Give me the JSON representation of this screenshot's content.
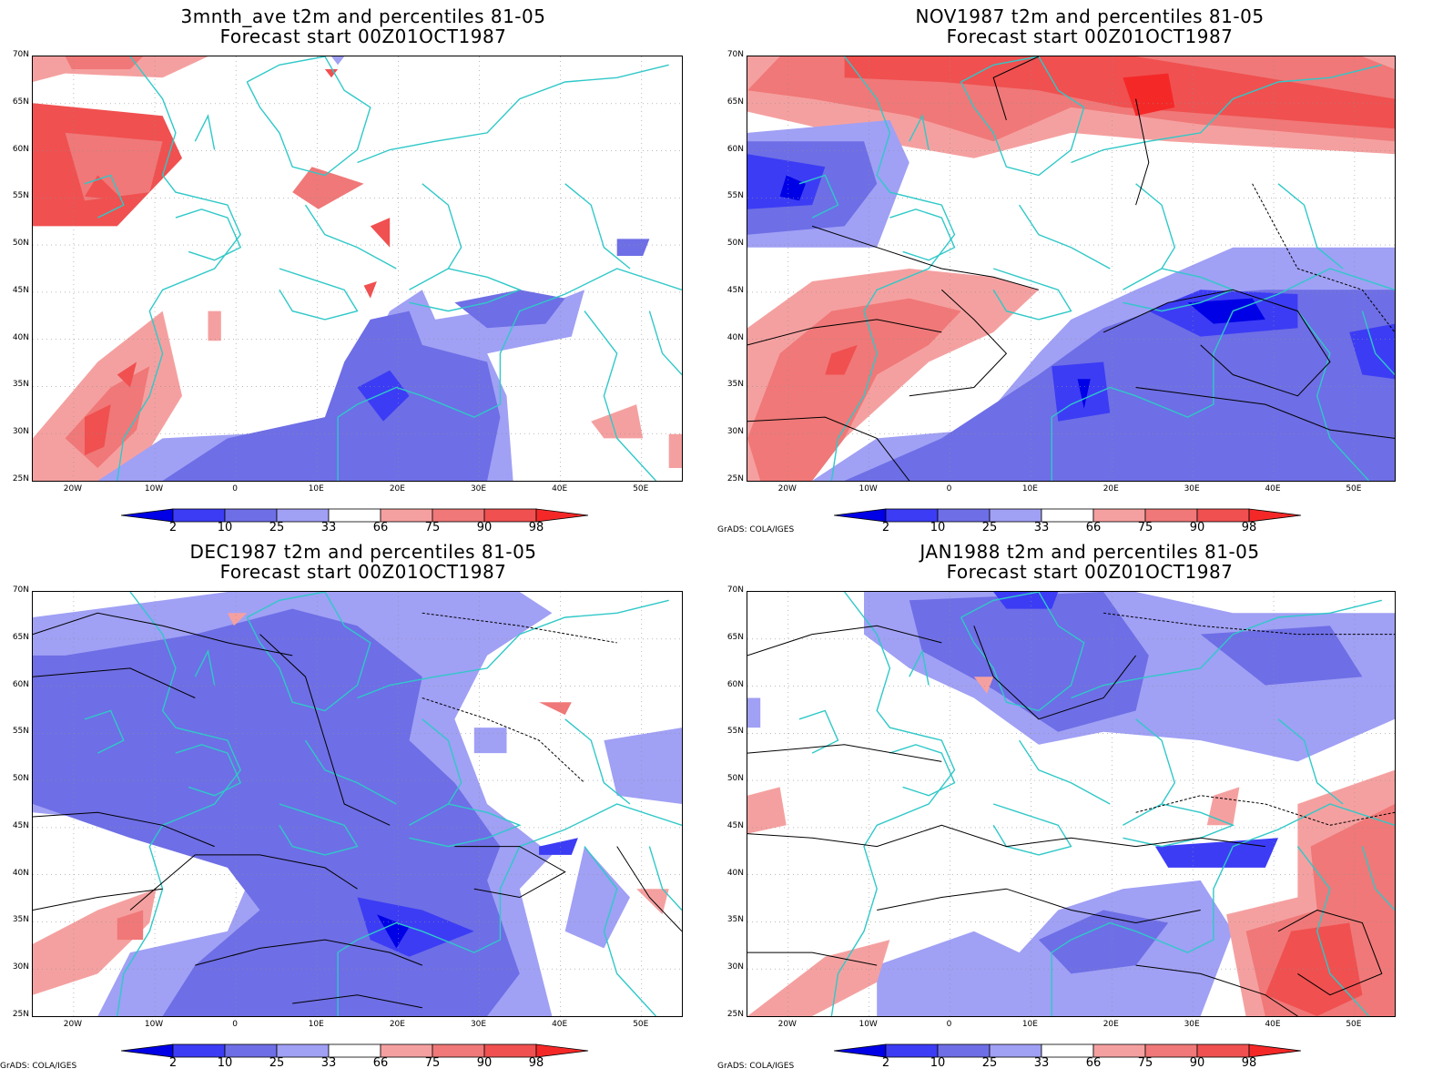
{
  "panels": [
    {
      "title_line1": "3mnth_ave t2m and percentiles 81-05",
      "title_line2": "Forecast start 00Z01OCT1987"
    },
    {
      "title_line1": "NOV1987 t2m and percentiles 81-05",
      "title_line2": "Forecast start 00Z01OCT1987"
    },
    {
      "title_line1": "DEC1987 t2m and percentiles 81-05",
      "title_line2": "Forecast start 00Z01OCT1987"
    },
    {
      "title_line1": "JAN1988 t2m and percentiles 81-05",
      "title_line2": "Forecast start 00Z01OCT1987"
    }
  ],
  "lat_labels": [
    "70N",
    "65N",
    "60N",
    "55N",
    "50N",
    "45N",
    "40N",
    "35N",
    "30N",
    "25N"
  ],
  "lon_labels": [
    "20W",
    "10W",
    "0",
    "10E",
    "20E",
    "30E",
    "40E",
    "50E"
  ],
  "legend": {
    "labels": [
      "2",
      "10",
      "25",
      "33",
      "66",
      "75",
      "90",
      "98"
    ],
    "colors": [
      "#0000e6",
      "#3c3cf5",
      "#6e6ee6",
      "#a0a0f5",
      "#ffffff",
      "#f5a0a0",
      "#f07878",
      "#f05050",
      "#f52828"
    ]
  },
  "credits": [
    "GrADS: COLA/IGES",
    "GrADS: COLA/IGES",
    "GrADS: COLA/IGES"
  ],
  "colors": {
    "coast": "#30c8c8",
    "contour": "#000000"
  }
}
